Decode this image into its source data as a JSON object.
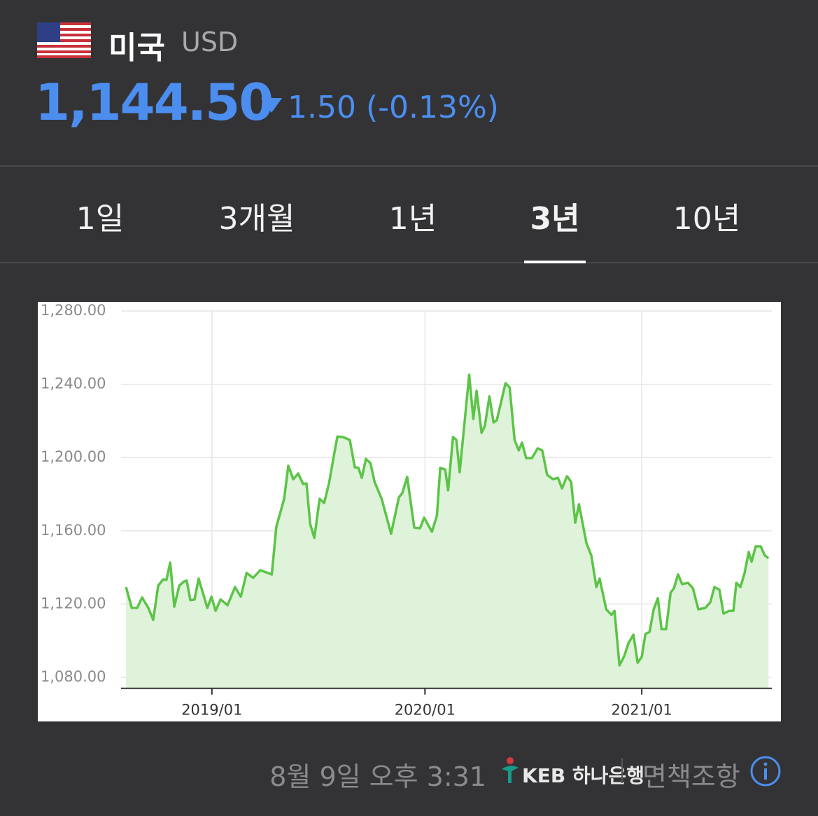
{
  "header": {
    "country": "미국",
    "currency": "USD",
    "price": "1,144.50",
    "change": "1.50 (-0.13%)"
  },
  "tabs": {
    "items": [
      "1일",
      "3개월",
      "1년",
      "3년",
      "10년"
    ],
    "selected": 3
  },
  "chart_data": {
    "type": "area",
    "color": "#5cc447",
    "fill": "#def3da",
    "x": [
      0,
      1.4,
      2.7,
      3.9,
      5.4,
      6.6,
      7.8,
      9.0,
      9.8,
      10.7,
      11.7,
      12.9,
      14.1,
      14.7,
      15.6,
      16.6,
      17.6,
      19.7,
      20.7,
      21.7,
      22.9,
      24.6,
      26.4,
      27.8,
      29.2,
      30.8,
      32.5,
      35.3,
      36.4,
      38.3,
      39.3,
      40.5,
      41.7,
      42.9,
      43.7,
      44.6,
      45.6,
      46.9,
      48.0,
      49.2,
      50.3,
      51.2,
      52.5,
      54.2,
      55.4,
      56.3,
      57.1,
      58.1,
      59.2,
      60.2,
      61.9,
      64.2,
      66.1,
      66.9,
      68.1,
      69.8,
      71.2,
      72.2,
      74.1,
      75.3,
      76.1,
      77.3,
      78.0,
      79.2,
      80.0,
      80.8,
      82.0,
      83.1,
      84.1,
      84.9,
      86.1,
      86.9,
      88.0,
      89.0,
      89.8,
      91.9,
      92.9,
      94.1,
      95.1,
      95.9,
      96.9,
      98.3,
      99.7,
      100.8,
      102.0,
      103.4,
      104.6,
      105.6,
      106.8,
      107.8,
      108.8,
      109.7,
      111.5,
      112.7,
      113.9,
      114.7,
      116.3,
      117.6,
      118.3,
      119.5,
      120.7,
      121.7,
      122.9,
      123.9,
      124.9,
      125.8,
      126.8,
      127.8,
      128.8,
      129.7,
      130.8,
      131.9,
      132.7,
      133.7,
      134.7,
      136.1,
      137.3,
      138.6,
      140.3,
      141.5,
      142.5,
      143.7,
      144.7,
      146.1,
      147.1,
      147.8,
      148.8,
      149.8,
      150.8,
      151.5,
      152.5,
      153.7,
      154.7,
      155.6
    ],
    "values": [
      1129.3,
      1117.9,
      1117.9,
      1123.6,
      1117.9,
      1111.4,
      1130.1,
      1133.5,
      1133.2,
      1142.7,
      1118.6,
      1130.1,
      1132.4,
      1132.8,
      1122.1,
      1122.5,
      1133.9,
      1117.9,
      1124.0,
      1116.3,
      1122.5,
      1119.4,
      1129.3,
      1124.0,
      1137.0,
      1134.3,
      1138.5,
      1136.2,
      1162.2,
      1177.5,
      1195.5,
      1188.2,
      1191.3,
      1185.5,
      1185.9,
      1163.7,
      1156.1,
      1177.5,
      1175.2,
      1186.3,
      1200.5,
      1211.5,
      1211.2,
      1209.6,
      1194.7,
      1194.3,
      1188.9,
      1199.3,
      1197.0,
      1186.7,
      1177.5,
      1158.4,
      1178.3,
      1180.6,
      1189.4,
      1161.8,
      1161.4,
      1167.2,
      1159.5,
      1168.3,
      1194.3,
      1193.5,
      1182.1,
      1211.2,
      1209.6,
      1192.0,
      1219.6,
      1245.2,
      1221.1,
      1236.4,
      1213.5,
      1217.3,
      1233.4,
      1219.2,
      1220.4,
      1240.6,
      1238.3,
      1209.6,
      1203.9,
      1208.1,
      1199.7,
      1199.7,
      1205.0,
      1203.9,
      1190.5,
      1188.2,
      1188.9,
      1183.2,
      1189.8,
      1186.7,
      1164.5,
      1174.5,
      1153.4,
      1146.5,
      1129.3,
      1133.9,
      1117.1,
      1114.1,
      1116.3,
      1086.5,
      1091.8,
      1098.7,
      1103.3,
      1088.0,
      1091.1,
      1103.7,
      1104.8,
      1117.1,
      1123.2,
      1106.3,
      1106.3,
      1126.3,
      1128.6,
      1136.2,
      1130.9,
      1131.6,
      1128.6,
      1117.1,
      1117.9,
      1121.0,
      1129.3,
      1127.8,
      1114.8,
      1116.3,
      1116.3,
      1131.6,
      1129.3,
      1137.0,
      1148.4,
      1143.1,
      1151.5,
      1151.5,
      1146.5,
      1145.0
    ],
    "xlim": [
      -1.2,
      156.4
    ],
    "xticks": [
      {
        "value": 20.8,
        "label": "2019/01"
      },
      {
        "value": 72.4,
        "label": "2020/01"
      },
      {
        "value": 124.9,
        "label": "2021/01"
      }
    ],
    "ylim": [
      1074,
      1282
    ],
    "yticks": [
      {
        "value": 1080,
        "label": "1,080.00"
      },
      {
        "value": 1120,
        "label": "1,120.00"
      },
      {
        "value": 1160,
        "label": "1,160.00"
      },
      {
        "value": 1200,
        "label": "1,200.00"
      },
      {
        "value": 1240,
        "label": "1,240.00"
      },
      {
        "value": 1280,
        "label": "1,280.00"
      }
    ],
    "grid": true
  },
  "footer": {
    "timestamp": "8월 9일 오후 3:31",
    "provider": "KEB 하나은행",
    "disclaimer": "면책조항"
  }
}
